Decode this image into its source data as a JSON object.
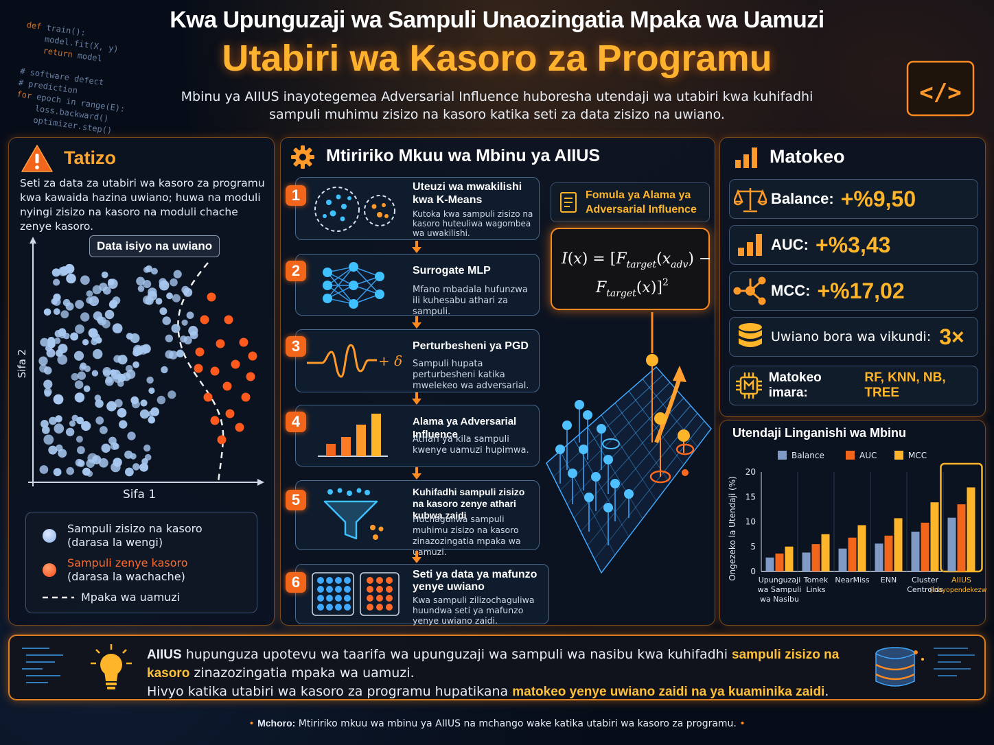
{
  "header": {
    "title_line1": "Kwa Upunguzaji wa Sampuli Unaozingatia Mpaka wa Uamuzi",
    "title_line2": "Utabiri wa Kasoro za Programu",
    "subtitle": "Mbinu ya AIIUS inayotegemea Adversarial Influence huboresha utendaji wa utabiri kwa kuhifadhi sampuli muhimu zisizo na kasoro katika seti za data zisizo na uwiano."
  },
  "code_snippet": {
    "lines": [
      "def train():",
      "    model.fit(X, y)",
      "    return model",
      "",
      "# software defect",
      "# prediction",
      "for epoch in range(E):",
      "    loss.backward()",
      "    optimizer.step()"
    ]
  },
  "problem": {
    "title": "Tatizo",
    "description": "Seti za data za utabiri wa kasoro za programu kwa kawaida hazina uwiano; huwa na moduli nyingi zisizo na kasoro na moduli chache zenye kasoro.",
    "plot_tag": "Data isiyo na uwiano",
    "x_label": "Sifa 1",
    "y_label": "Sifa 2",
    "legend": [
      {
        "label": "Sampuli zisizo na kasoro",
        "sub": "(darasa la wengi)",
        "color": "#a8c8f0"
      },
      {
        "label": "Sampuli zenye kasoro",
        "sub": "(darasa la wachache)",
        "color": "#ff5a1e"
      },
      {
        "label": "Mpaka wa uamuzi"
      }
    ]
  },
  "workflow": {
    "title": "Mtiririko Mkuu wa Mbinu ya AIIUS",
    "steps": [
      {
        "num": "1",
        "title": "Uteuzi wa mwakilishi kwa K-Means",
        "desc": "Kutoka kwa sampuli zisizo na kasoro huteuliwa wagombea wa uwakilishi."
      },
      {
        "num": "2",
        "title": "Surrogate MLP",
        "desc": "Mfano mbadala hufunzwa ili kuhesabu athari za sampuli."
      },
      {
        "num": "3",
        "title": "Perturbesheni ya PGD",
        "desc": "Sampuli hupata perturbesheni katika mwelekeo wa adversarial."
      },
      {
        "num": "4",
        "title": "Alama ya Adversarial Influence",
        "desc": "Athari ya kila sampuli kwenye uamuzi hupimwa."
      },
      {
        "num": "5",
        "title": "Kuhifadhi sampuli zisizo na kasoro zenye athari kubwa zaidi",
        "desc": "Huchaguliwa sampuli muhimu zisizo na kasoro zinazozingatia mpaka wa uamuzi."
      },
      {
        "num": "6",
        "title": "Seti ya data ya mafunzo yenye uwiano",
        "desc": "Kwa sampuli zilizochaguliwa huundwa seti ya mafunzo yenye uwiano zaidi."
      }
    ],
    "formula_title": "Fomula ya Alama ya Adversarial Influence",
    "delta_label": "+ δ"
  },
  "results": {
    "title": "Matokeo",
    "items": [
      {
        "label": "Balance:",
        "value": "+%9,50",
        "icon": "scale-icon"
      },
      {
        "label": "AUC:",
        "value": "+%3,43",
        "icon": "bar-chart-icon"
      },
      {
        "label": "MCC:",
        "value": "+%17,02",
        "icon": "network-icon"
      },
      {
        "label": "Uwiano bora wa vikundi:",
        "value": "3×",
        "icon": "database-icon"
      },
      {
        "label": "Matokeo imara:",
        "value": "RF, KNN, NB, TREE",
        "icon": "chip-icon"
      }
    ]
  },
  "chart_data": {
    "type": "bar",
    "title": "Utendaji Linganishi wa Mbinu",
    "ylabel": "Ongezeko la Utendaji (%)",
    "ylim": [
      0,
      20
    ],
    "yticks": [
      0,
      5,
      10,
      15,
      20
    ],
    "categories": [
      "Upunguzaji wa Sampuli wa Nasibu",
      "Tomek Links",
      "NearMiss",
      "ENN",
      "Cluster Centroids",
      "AIIUS (Inayopendekezwa)"
    ],
    "series": [
      {
        "name": "Balance",
        "color": "#7f9ac4",
        "values": [
          2.8,
          3.8,
          4.6,
          5.6,
          8.0,
          10.8
        ]
      },
      {
        "name": "AUC",
        "color": "#f2661b",
        "values": [
          3.6,
          5.5,
          6.8,
          7.2,
          9.8,
          13.5
        ]
      },
      {
        "name": "MCC",
        "color": "#ffb52a",
        "values": [
          5.0,
          7.5,
          9.3,
          10.7,
          13.9,
          16.9
        ]
      }
    ],
    "legend_position": "top",
    "grid": false
  },
  "footer": {
    "summary_lead": "AIIUS",
    "summary_1": " hupunguza upotevu wa taarifa wa upunguzaji wa sampuli wa nasibu kwa kuhifadhi ",
    "summary_hl1": "sampuli zisizo na kasoro",
    "summary_2": " zinazozingatia mpaka wa uamuzi.",
    "summary_3": "Hivyo katika utabiri wa kasoro za programu hupatikana ",
    "summary_hl2": "matokeo yenye uwiano zaidi na ya kuaminika zaidi",
    "summary_4": ".",
    "caption_label": "Mchoro:",
    "caption_text": " Mtiririko mkuu wa mbinu ya AIIUS na mchango wake katika utabiri wa kasoro za programu."
  }
}
